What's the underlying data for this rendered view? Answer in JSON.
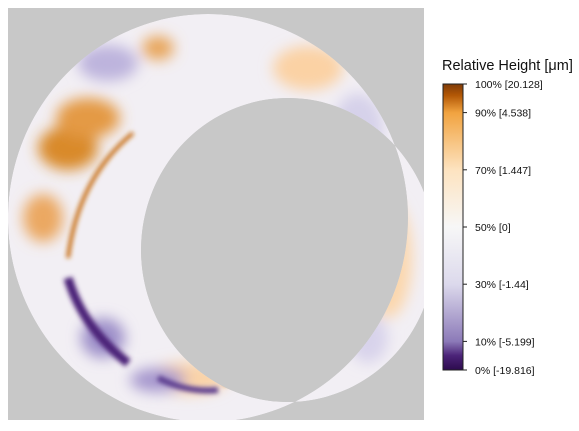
{
  "chart_data": {
    "type": "heatmap",
    "legend_title": "Relative Height [μm]",
    "colormap": {
      "low_color": "#2d0b4e",
      "mid_color": "#f7f7f7",
      "high_color": "#7f3b08"
    },
    "background_color": "#c8c8c8",
    "colorbar_ticks": [
      {
        "percent": 100,
        "value": 20.128,
        "label": "100% [20.128]"
      },
      {
        "percent": 90,
        "value": 4.538,
        "label": "90% [4.538]"
      },
      {
        "percent": 70,
        "value": 1.447,
        "label": "70% [1.447]"
      },
      {
        "percent": 50,
        "value": 0,
        "label": "50% [0]"
      },
      {
        "percent": 30,
        "value": -1.44,
        "label": "30% [-1.44]"
      },
      {
        "percent": 10,
        "value": -5.199,
        "label": "10% [-5.199]"
      },
      {
        "percent": 0,
        "value": -19.816,
        "label": "0% [-19.816]"
      }
    ],
    "value_range": [
      -19.816,
      20.128
    ]
  }
}
